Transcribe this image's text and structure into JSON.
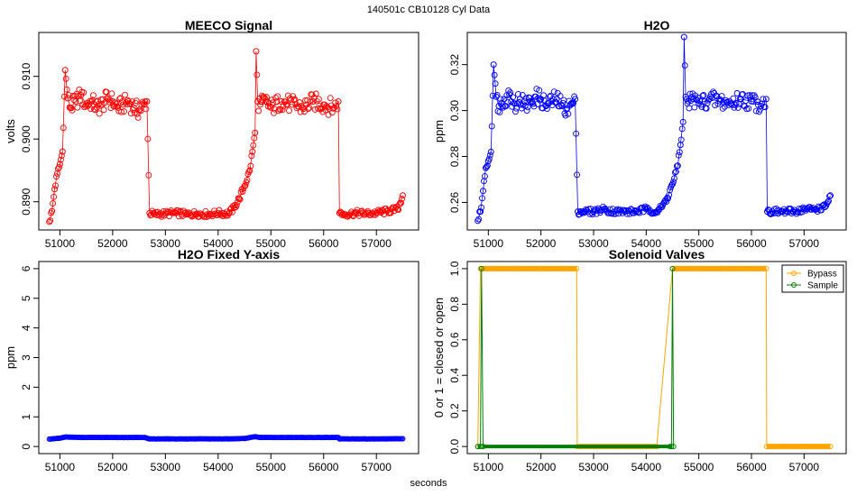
{
  "header": {
    "title": "140501c    CB10128   Cyl Data"
  },
  "footer": {
    "xlabel": "seconds"
  },
  "colors": {
    "red": "#ff0000",
    "blue": "#0000ff",
    "orange": "#ffa500",
    "green": "#008000"
  },
  "chart_data": [
    {
      "id": "meeco",
      "type": "scatter",
      "title": "MEECO Signal",
      "xlabel": "",
      "ylabel": "volts",
      "xlim": [
        50600,
        57800
      ],
      "ylim": [
        0.8855,
        0.917
      ],
      "xticks": [
        51000,
        52000,
        53000,
        54000,
        55000,
        56000,
        57000
      ],
      "yticks": [
        0.89,
        0.9,
        0.91
      ],
      "ytick_labels": [
        "0.890",
        "0.900",
        "0.910"
      ],
      "series": [
        {
          "name": "MEECO Signal",
          "color": "#ff0000",
          "x": [
            50800,
            50850,
            50900,
            50950,
            51000,
            51050,
            51100,
            51150,
            51200,
            51300,
            51400,
            51500,
            51600,
            51700,
            51800,
            51900,
            52000,
            52100,
            52200,
            52300,
            52400,
            52500,
            52600,
            52650,
            52700,
            52800,
            53000,
            53200,
            53400,
            53600,
            53800,
            54000,
            54200,
            54300,
            54400,
            54500,
            54600,
            54650,
            54700,
            54720,
            54750,
            54800,
            54900,
            55000,
            55200,
            55400,
            55600,
            55800,
            56000,
            56200,
            56280,
            56300,
            56400,
            56600,
            56800,
            57000,
            57200,
            57400,
            57500
          ],
          "values": [
            0.8868,
            0.8885,
            0.892,
            0.8945,
            0.896,
            0.898,
            0.911,
            0.9065,
            0.905,
            0.906,
            0.907,
            0.9055,
            0.906,
            0.905,
            0.9055,
            0.9065,
            0.906,
            0.905,
            0.9055,
            0.906,
            0.905,
            0.9045,
            0.9055,
            0.906,
            0.8882,
            0.888,
            0.8881,
            0.8882,
            0.888,
            0.8881,
            0.888,
            0.8882,
            0.8881,
            0.889,
            0.8905,
            0.8925,
            0.895,
            0.898,
            0.901,
            0.914,
            0.906,
            0.9055,
            0.906,
            0.905,
            0.906,
            0.9055,
            0.905,
            0.906,
            0.9055,
            0.905,
            0.906,
            0.8882,
            0.888,
            0.8882,
            0.8881,
            0.8882,
            0.8885,
            0.8888,
            0.891
          ]
        }
      ]
    },
    {
      "id": "h2o",
      "type": "scatter",
      "title": "H2O",
      "xlabel": "",
      "ylabel": "ppm",
      "xlim": [
        50600,
        57800
      ],
      "ylim": [
        0.248,
        0.334
      ],
      "xticks": [
        51000,
        52000,
        53000,
        54000,
        55000,
        56000,
        57000
      ],
      "yticks": [
        0.26,
        0.28,
        0.3,
        0.32
      ],
      "ytick_labels": [
        "0.26",
        "0.28",
        "0.30",
        "0.32"
      ],
      "series": [
        {
          "name": "H2O",
          "color": "#0000ff",
          "x": [
            50800,
            50850,
            50900,
            50950,
            51000,
            51050,
            51100,
            51150,
            51200,
            51300,
            51400,
            51500,
            51600,
            51700,
            51800,
            51900,
            52000,
            52100,
            52200,
            52300,
            52400,
            52500,
            52600,
            52650,
            52700,
            52800,
            53000,
            53200,
            53400,
            53600,
            53800,
            54000,
            54200,
            54300,
            54400,
            54500,
            54600,
            54650,
            54700,
            54720,
            54750,
            54800,
            54900,
            55000,
            55200,
            55400,
            55600,
            55800,
            56000,
            56200,
            56280,
            56300,
            56400,
            56600,
            56800,
            57000,
            57200,
            57400,
            57500
          ],
          "values": [
            0.252,
            0.256,
            0.265,
            0.275,
            0.278,
            0.282,
            0.32,
            0.306,
            0.302,
            0.305,
            0.307,
            0.303,
            0.305,
            0.302,
            0.304,
            0.306,
            0.305,
            0.302,
            0.304,
            0.305,
            0.302,
            0.301,
            0.303,
            0.305,
            0.256,
            0.256,
            0.256,
            0.257,
            0.256,
            0.256,
            0.256,
            0.257,
            0.256,
            0.258,
            0.262,
            0.268,
            0.276,
            0.285,
            0.295,
            0.332,
            0.306,
            0.304,
            0.305,
            0.303,
            0.305,
            0.304,
            0.303,
            0.305,
            0.304,
            0.303,
            0.305,
            0.256,
            0.256,
            0.256,
            0.256,
            0.257,
            0.257,
            0.258,
            0.263
          ]
        }
      ]
    },
    {
      "id": "h2o_fixed",
      "type": "scatter",
      "title": "H2O Fixed Y-axis",
      "xlabel": "",
      "ylabel": "ppm",
      "xlim": [
        50600,
        57800
      ],
      "ylim": [
        -0.24,
        6.24
      ],
      "xticks": [
        51000,
        52000,
        53000,
        54000,
        55000,
        56000,
        57000
      ],
      "yticks": [
        0,
        1,
        2,
        3,
        4,
        5,
        6
      ],
      "ytick_labels": [
        "0",
        "1",
        "2",
        "3",
        "4",
        "5",
        "6"
      ],
      "series": [
        {
          "name": "H2O",
          "color": "#0000ff",
          "x": [
            50800,
            51000,
            51100,
            51400,
            51800,
            52200,
            52600,
            52700,
            53000,
            53400,
            53800,
            54200,
            54500,
            54700,
            54800,
            55200,
            55600,
            56000,
            56280,
            56300,
            56800,
            57200,
            57500
          ],
          "values": [
            0.25,
            0.28,
            0.32,
            0.305,
            0.305,
            0.303,
            0.305,
            0.256,
            0.256,
            0.256,
            0.256,
            0.256,
            0.27,
            0.33,
            0.305,
            0.304,
            0.304,
            0.304,
            0.305,
            0.256,
            0.256,
            0.257,
            0.263
          ]
        }
      ]
    },
    {
      "id": "valves",
      "type": "scatter",
      "title": "Solenoid Valves",
      "xlabel": "",
      "ylabel": "0 or 1 = closed or open",
      "xlim": [
        50600,
        57800
      ],
      "ylim": [
        -0.04,
        1.04
      ],
      "xticks": [
        51000,
        52000,
        53000,
        54000,
        55000,
        56000,
        57000
      ],
      "yticks": [
        0.0,
        0.2,
        0.4,
        0.6,
        0.8,
        1.0
      ],
      "ytick_labels": [
        "0.0",
        "0.2",
        "0.4",
        "0.6",
        "0.8",
        "1.0"
      ],
      "legend": {
        "position": "top-right",
        "entries": [
          "Bypass",
          "Sample"
        ]
      },
      "series": [
        {
          "name": "Bypass",
          "color": "#ffa500",
          "x": [
            50800,
            50850,
            51000,
            51500,
            52000,
            52500,
            52680,
            52690,
            53000,
            53500,
            54000,
            54200,
            54500,
            55000,
            55500,
            56000,
            56280,
            56290,
            56600,
            57000,
            57500
          ],
          "values": [
            0,
            1,
            1,
            1,
            1,
            1,
            1,
            0,
            0,
            0,
            0,
            0,
            1,
            1,
            1,
            1,
            1,
            0,
            0,
            0,
            0
          ]
        },
        {
          "name": "Sample",
          "color": "#008000",
          "x": [
            50800,
            50850,
            50870,
            50900,
            54450,
            54480,
            54500,
            54520
          ],
          "values": [
            0,
            0,
            1,
            0,
            0,
            0,
            1,
            0
          ]
        }
      ]
    }
  ]
}
